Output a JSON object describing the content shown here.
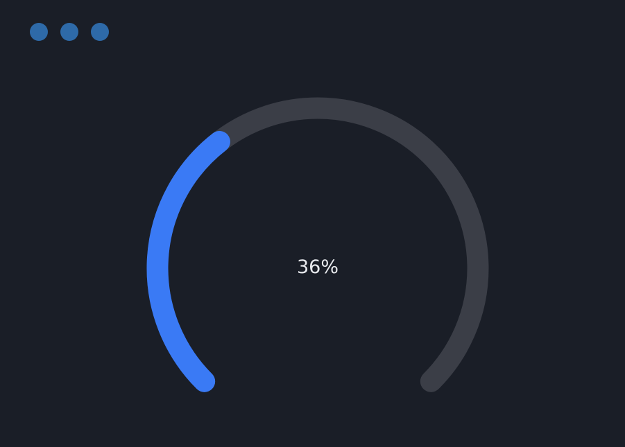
{
  "window": {
    "controls": [
      {
        "name": "close",
        "color": "#2e6aa8"
      },
      {
        "name": "minimize",
        "color": "#2e6aa8"
      },
      {
        "name": "maximize",
        "color": "#2e6aa8"
      }
    ]
  },
  "gauge": {
    "value": 36,
    "max": 100,
    "display": "36%",
    "track_color": "#3b3e47",
    "fill_color": "#3a7af5"
  }
}
